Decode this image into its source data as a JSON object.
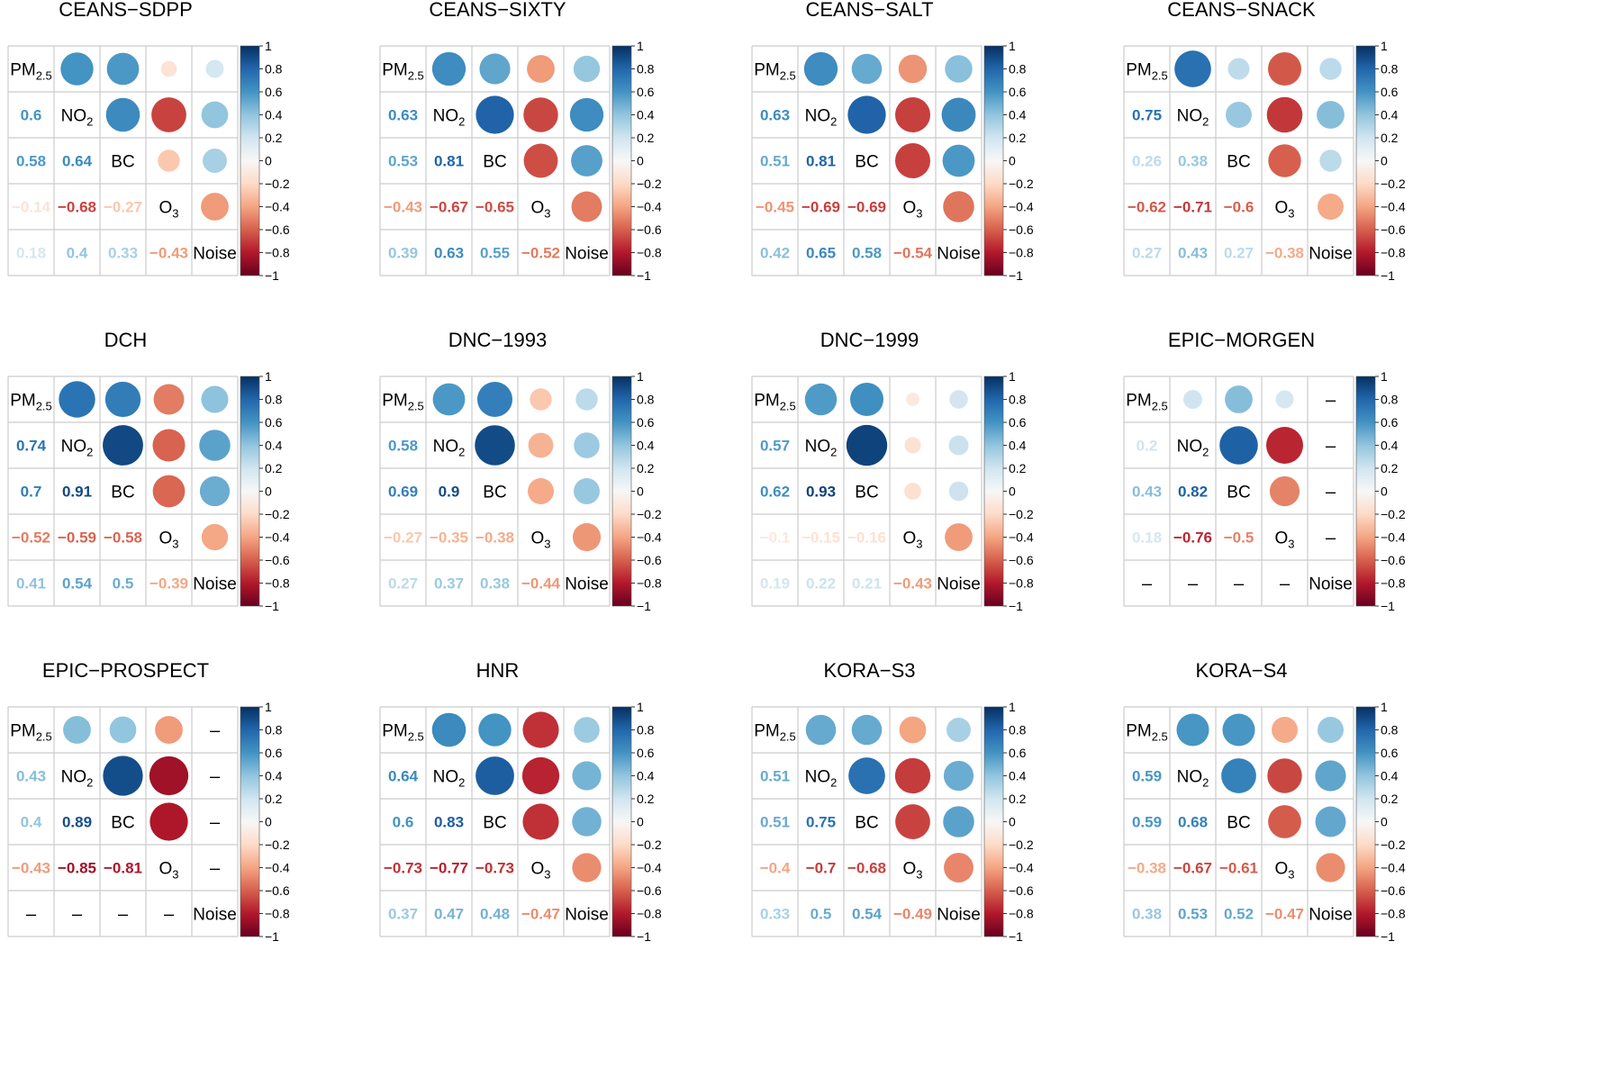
{
  "chart_data": {
    "type": "heatmap",
    "variables": [
      "PM",
      "NO",
      "BC",
      "O",
      "Noise"
    ],
    "variable_subscripts": [
      "2.5",
      "2",
      "",
      "3",
      ""
    ],
    "missing_symbol": "–",
    "colorbar": {
      "ticks": [
        "1",
        "0.8",
        "0.6",
        "0.4",
        "0.2",
        "0",
        "−0.2",
        "−0.4",
        "−0.6",
        "−0.8",
        "−1"
      ],
      "range": [
        -1,
        1
      ]
    },
    "colors": {
      "positive": "#053061",
      "negative": "#67001f",
      "grid": "#cccccc",
      "label": "#000000"
    },
    "panels": [
      {
        "title": "CEANS−SDPP",
        "pairs": [
          0.6,
          0.58,
          0.64,
          -0.14,
          -0.68,
          -0.27,
          0.18,
          0.4,
          0.33,
          -0.43
        ]
      },
      {
        "title": "CEANS−SIXTY",
        "pairs": [
          0.63,
          0.53,
          0.81,
          -0.43,
          -0.67,
          -0.65,
          0.39,
          0.63,
          0.55,
          -0.52
        ]
      },
      {
        "title": "CEANS−SALT",
        "pairs": [
          0.63,
          0.51,
          0.81,
          -0.45,
          -0.69,
          -0.69,
          0.42,
          0.65,
          0.58,
          -0.54
        ]
      },
      {
        "title": "CEANS−SNACK",
        "pairs": [
          0.75,
          0.26,
          0.38,
          -0.62,
          -0.71,
          -0.6,
          0.27,
          0.43,
          0.27,
          -0.38
        ]
      },
      {
        "title": "DCH",
        "pairs": [
          0.74,
          0.7,
          0.91,
          -0.52,
          -0.59,
          -0.58,
          0.41,
          0.54,
          0.5,
          -0.39
        ]
      },
      {
        "title": "DNC−1993",
        "pairs": [
          0.58,
          0.69,
          0.9,
          -0.27,
          -0.35,
          -0.38,
          0.27,
          0.37,
          0.38,
          -0.44
        ]
      },
      {
        "title": "DNC−1999",
        "pairs": [
          0.57,
          0.62,
          0.93,
          -0.1,
          -0.15,
          -0.16,
          0.19,
          0.22,
          0.21,
          -0.43
        ]
      },
      {
        "title": "EPIC−MORGEN",
        "pairs": [
          0.2,
          0.43,
          0.82,
          0.18,
          -0.76,
          -0.5,
          null,
          null,
          null,
          null
        ]
      },
      {
        "title": "EPIC−PROSPECT",
        "pairs": [
          0.43,
          0.4,
          0.89,
          -0.43,
          -0.85,
          -0.81,
          null,
          null,
          null,
          null
        ]
      },
      {
        "title": "HNR",
        "pairs": [
          0.64,
          0.6,
          0.83,
          -0.73,
          -0.77,
          -0.73,
          0.37,
          0.47,
          0.48,
          -0.47
        ]
      },
      {
        "title": "KORA−S3",
        "pairs": [
          0.51,
          0.51,
          0.75,
          -0.4,
          -0.7,
          -0.68,
          0.33,
          0.5,
          0.54,
          -0.49
        ]
      },
      {
        "title": "KORA−S4",
        "pairs": [
          0.59,
          0.59,
          0.68,
          -0.38,
          -0.67,
          -0.61,
          0.38,
          0.53,
          0.52,
          -0.47
        ]
      }
    ]
  }
}
